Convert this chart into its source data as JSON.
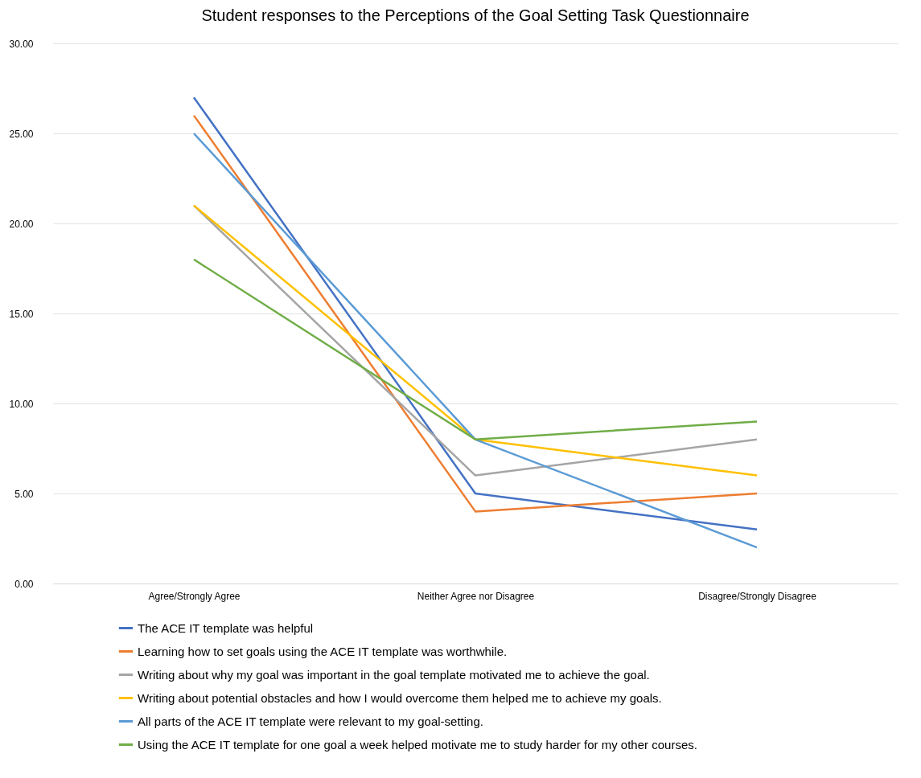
{
  "chart_data": {
    "type": "line",
    "title": "Student responses to the Perceptions of the Goal Setting Task Questionnaire",
    "categories": [
      "Agree/Strongly Agree",
      "Neither Agree nor Disagree",
      "Disagree/Strongly Disagree"
    ],
    "series": [
      {
        "name": "The ACE IT template was helpful",
        "color": "#4472c4",
        "values": [
          27,
          5,
          3
        ]
      },
      {
        "name": "Learning how to set goals using the ACE IT template was worthwhile.",
        "color": "#ed7d31",
        "values": [
          26,
          4,
          5
        ]
      },
      {
        "name": "Writing about why my goal was important in the goal template motivated me to achieve the goal.",
        "color": "#a5a5a5",
        "values": [
          21,
          6,
          8
        ]
      },
      {
        "name": "Writing about potential obstacles and how I would overcome them helped me to achieve my goals.",
        "color": "#ffc000",
        "values": [
          21,
          8,
          6
        ]
      },
      {
        "name": "All parts of the ACE IT template were relevant to my goal-setting.",
        "color": "#5b9bd5",
        "values": [
          25,
          8,
          2
        ]
      },
      {
        "name": "Using the ACE IT template for one goal a week helped motivate me to study harder for my other courses.",
        "color": "#70ad47",
        "values": [
          18,
          8,
          9
        ]
      }
    ],
    "ylim": [
      0,
      30
    ],
    "yticks": [
      {
        "value": 0,
        "label": "0.00"
      },
      {
        "value": 5,
        "label": "5.00"
      },
      {
        "value": 10,
        "label": "10.00"
      },
      {
        "value": 15,
        "label": "15.00"
      },
      {
        "value": 20,
        "label": "20.00"
      },
      {
        "value": 25,
        "label": "25.00"
      },
      {
        "value": 30,
        "label": "30.00"
      }
    ],
    "grid": "y",
    "legend": "bottom",
    "marker": "none",
    "line_style": "solid"
  }
}
